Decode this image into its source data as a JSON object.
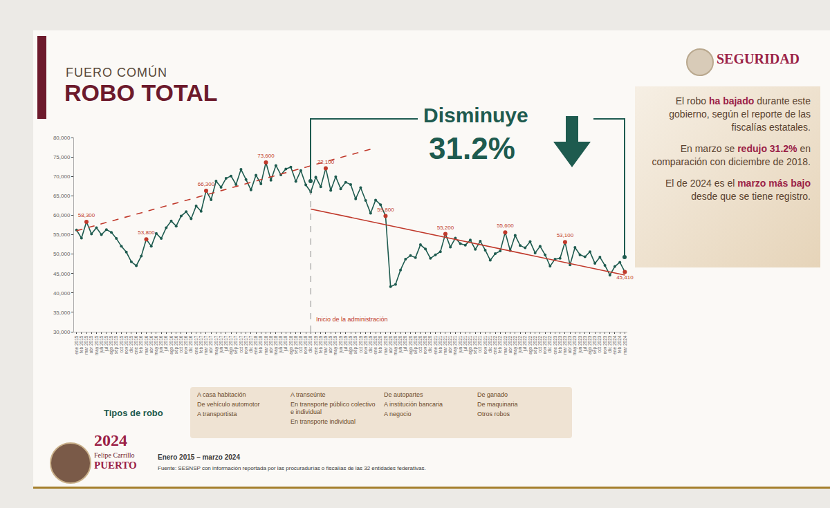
{
  "header": {
    "kicker": "FUERO COMÚN",
    "title": "ROBO TOTAL",
    "logo": "SEGURIDAD"
  },
  "callout": {
    "text": "Disminuye",
    "value_label": "31.2%"
  },
  "summary": [
    [
      {
        "text": "El robo "
      },
      {
        "text": "ha bajado",
        "bold": true
      },
      {
        "text": " durante este gobierno, según el reporte de las fiscalías estatales."
      }
    ],
    [
      {
        "text": "En marzo se "
      },
      {
        "text": "redujo 31.2%",
        "bold": true
      },
      {
        "text": " en comparación con diciembre de 2018."
      }
    ],
    [
      {
        "text": "El de 2024 es el "
      },
      {
        "text": "marzo más bajo",
        "bold": true
      },
      {
        "text": " desde que se tiene registro."
      }
    ]
  ],
  "chart_data": {
    "type": "line",
    "categories": [
      "ene 2015",
      "feb 2015",
      "mar 2015",
      "abr 2015",
      "may 2015",
      "jun 2015",
      "jul 2015",
      "ago 2015",
      "sep 2015",
      "oct 2015",
      "nov 2015",
      "dic 2015",
      "ene 2016",
      "feb 2016",
      "mar 2016",
      "abr 2016",
      "may 2016",
      "jun 2016",
      "jul 2016",
      "ago 2016",
      "sep 2016",
      "oct 2016",
      "nov 2016",
      "dic 2016",
      "ene 2017",
      "feb 2017",
      "mar 2017",
      "abr 2017",
      "may 2017",
      "jun 2017",
      "jul 2017",
      "ago 2017",
      "sep 2017",
      "oct 2017",
      "nov 2017",
      "dic 2017",
      "ene 2018",
      "feb 2018",
      "mar 2018",
      "abr 2018",
      "may 2018",
      "jun 2018",
      "jul 2018",
      "ago 2018",
      "sep 2018",
      "oct 2018",
      "nov 2018",
      "dic 2018",
      "ene 2019",
      "feb 2019",
      "mar 2019",
      "abr 2019",
      "may 2019",
      "jun 2019",
      "jul 2019",
      "ago 2019",
      "sep 2019",
      "oct 2019",
      "nov 2019",
      "dic 2019",
      "ene 2020",
      "feb 2020",
      "mar 2020",
      "abr 2020",
      "may 2020",
      "jun 2020",
      "jul 2020",
      "ago 2020",
      "sep 2020",
      "oct 2020",
      "nov 2020",
      "dic 2020",
      "ene 2021",
      "feb 2021",
      "mar 2021",
      "abr 2021",
      "may 2021",
      "jun 2021",
      "jul 2021",
      "ago 2021",
      "sep 2021",
      "oct 2021",
      "nov 2021",
      "dic 2021",
      "ene 2022",
      "feb 2022",
      "mar 2022",
      "abr 2022",
      "may 2022",
      "jun 2022",
      "jul 2022",
      "ago 2022",
      "sep 2022",
      "oct 2022",
      "nov 2022",
      "dic 2022",
      "ene 2023",
      "feb 2023",
      "mar 2023",
      "abr 2023",
      "may 2023",
      "jun 2023",
      "jul 2023",
      "ago 2023",
      "sep 2023",
      "oct 2023",
      "nov 2023",
      "dic 2023",
      "ene 2024",
      "feb 2024",
      "mar 2024"
    ],
    "ylim": [
      30000,
      80000
    ],
    "yticks": [
      {
        "value": 30000,
        "label": "30,000"
      },
      {
        "value": 35000,
        "label": "35,000"
      },
      {
        "value": 40000,
        "label": "40,000"
      },
      {
        "value": 45000,
        "label": "45,000"
      },
      {
        "value": 50000,
        "label": "50,000"
      },
      {
        "value": 55000,
        "label": "55,000"
      },
      {
        "value": 60000,
        "label": "60,000"
      },
      {
        "value": 65000,
        "label": "65,000"
      },
      {
        "value": 70000,
        "label": "70,000"
      },
      {
        "value": 75000,
        "label": "75,000"
      },
      {
        "value": 80000,
        "label": "80,000"
      }
    ],
    "grid": false,
    "series": [
      {
        "color": "#1e5b4f",
        "marker": "circle",
        "line_style": "solid",
        "values": [
          56200,
          54100,
          58300,
          55200,
          56800,
          55000,
          56300,
          55600,
          54000,
          52000,
          50500,
          48000,
          47000,
          49500,
          53800,
          52000,
          55300,
          54000,
          56800,
          58500,
          57200,
          59800,
          60900,
          59100,
          62400,
          61000,
          66300,
          64000,
          68800,
          67200,
          69500,
          70100,
          67900,
          71800,
          69200,
          66500,
          70300,
          68100,
          73600,
          69000,
          72800,
          70400,
          71900,
          72400,
          68700,
          71500,
          67800,
          66000,
          69800,
          67300,
          72100,
          66400,
          69900,
          66800,
          68500,
          67900,
          64200,
          67100,
          63800,
          60500,
          63900,
          62700,
          59800,
          41600,
          42200,
          45900,
          48700,
          49600,
          49100,
          52400,
          51300,
          48900,
          49800,
          50600,
          55200,
          51800,
          54100,
          52700,
          52300,
          53600,
          51200,
          53300,
          51000,
          48400,
          50100,
          50800,
          55600,
          50900,
          54800,
          52200,
          51600,
          53200,
          50300,
          52000,
          49800,
          46900,
          48700,
          48900,
          53100,
          47200,
          51700,
          49800,
          49300,
          50600,
          47600,
          49200,
          47100,
          44600,
          46800,
          47900,
          45410
        ]
      },
      {
        "color": "#c0392b",
        "marker": "circle",
        "line_style": "none",
        "values": [
          null,
          null,
          58300,
          null,
          null,
          null,
          null,
          null,
          null,
          null,
          null,
          null,
          null,
          null,
          53800,
          null,
          null,
          null,
          null,
          null,
          null,
          null,
          null,
          null,
          null,
          null,
          66300,
          null,
          null,
          null,
          null,
          null,
          null,
          null,
          null,
          null,
          null,
          null,
          73600,
          null,
          null,
          null,
          null,
          null,
          null,
          null,
          null,
          null,
          null,
          null,
          72100,
          null,
          null,
          null,
          null,
          null,
          null,
          null,
          null,
          null,
          null,
          null,
          59800,
          null,
          null,
          null,
          null,
          null,
          null,
          null,
          null,
          null,
          null,
          null,
          55200,
          null,
          null,
          null,
          null,
          null,
          null,
          null,
          null,
          null,
          null,
          null,
          55600,
          null,
          null,
          null,
          null,
          null,
          null,
          null,
          null,
          null,
          null,
          null,
          53100,
          null,
          null,
          null,
          null,
          null,
          null,
          null,
          null,
          null,
          null,
          null,
          45410
        ],
        "value_labels": [
          null,
          null,
          "58,300",
          null,
          null,
          null,
          null,
          null,
          null,
          null,
          null,
          null,
          null,
          null,
          "53,800",
          null,
          null,
          null,
          null,
          null,
          null,
          null,
          null,
          null,
          null,
          null,
          "66,300",
          null,
          null,
          null,
          null,
          null,
          null,
          null,
          null,
          null,
          null,
          null,
          "73,600",
          null,
          null,
          null,
          null,
          null,
          null,
          null,
          null,
          null,
          null,
          null,
          "72,100",
          null,
          null,
          null,
          null,
          null,
          null,
          null,
          null,
          null,
          null,
          null,
          "59,800",
          null,
          null,
          null,
          null,
          null,
          null,
          null,
          null,
          null,
          null,
          null,
          "55,200",
          null,
          null,
          null,
          null,
          null,
          null,
          null,
          null,
          null,
          null,
          null,
          "55,600",
          null,
          null,
          null,
          null,
          null,
          null,
          null,
          null,
          null,
          null,
          null,
          "53,100",
          null,
          null,
          null,
          null,
          null,
          null,
          null,
          null,
          null,
          null,
          null,
          "45,410"
        ]
      },
      {
        "color": "#c0392b",
        "line_style": "dash",
        "values": [
          56000,
          null,
          null,
          null,
          null,
          null,
          null,
          null,
          null,
          null,
          null,
          null,
          null,
          null,
          null,
          null,
          null,
          null,
          null,
          null,
          null,
          null,
          null,
          null,
          null,
          null,
          null,
          null,
          null,
          null,
          null,
          null,
          null,
          null,
          null,
          null,
          null,
          null,
          null,
          null,
          null,
          null,
          null,
          null,
          null,
          null,
          null,
          null,
          null,
          null,
          null,
          null,
          null,
          null,
          null,
          null,
          null,
          null,
          null,
          77000,
          null,
          null,
          null,
          null,
          null,
          null,
          null,
          null,
          null,
          null,
          null,
          null,
          null,
          null,
          null,
          null,
          null,
          null,
          null,
          null,
          null,
          null,
          null,
          null,
          null,
          null,
          null,
          null,
          null,
          null,
          null,
          null,
          null,
          null,
          null,
          null,
          null,
          null,
          null,
          null,
          null,
          null,
          null,
          null,
          null,
          null,
          null,
          null,
          null,
          null,
          null
        ]
      },
      {
        "color": "#c0392b",
        "line_style": "solid",
        "values": [
          null,
          null,
          null,
          null,
          null,
          null,
          null,
          null,
          null,
          null,
          null,
          null,
          null,
          null,
          null,
          null,
          null,
          null,
          null,
          null,
          null,
          null,
          null,
          null,
          null,
          null,
          null,
          null,
          null,
          null,
          null,
          null,
          null,
          null,
          null,
          null,
          null,
          null,
          null,
          null,
          null,
          null,
          null,
          null,
          null,
          null,
          null,
          61600,
          null,
          null,
          null,
          null,
          null,
          null,
          null,
          null,
          null,
          null,
          null,
          null,
          null,
          null,
          null,
          null,
          null,
          null,
          null,
          null,
          null,
          null,
          null,
          null,
          null,
          null,
          null,
          null,
          null,
          null,
          null,
          null,
          null,
          null,
          null,
          null,
          null,
          null,
          null,
          null,
          null,
          null,
          null,
          null,
          null,
          null,
          null,
          null,
          null,
          null,
          null,
          null,
          null,
          null,
          null,
          null,
          null,
          null,
          null,
          null,
          null,
          null,
          44600
        ]
      }
    ],
    "annotations": [
      {
        "text": "Inicio de la administración",
        "x": "dic 2018"
      }
    ]
  },
  "types": {
    "title": "Tipos de robo",
    "items": [
      "A casa habitación",
      "De vehículo automotor",
      "A transportista",
      "A transeúnte",
      "En transporte público colectivo e individual",
      "En transporte individual",
      "De autopartes",
      "A institución bancaria",
      "A negocio",
      "De ganado",
      "De maquinaria",
      "Otros robos"
    ]
  },
  "footer": {
    "period": "Enero 2015 – marzo 2024",
    "source": "Fuente: SESNSP con información reportada por las procuradurías o fiscalías de las 32 entidades federativas.",
    "badge": [
      "2024",
      "Felipe Carrillo",
      "PUERTO"
    ]
  }
}
